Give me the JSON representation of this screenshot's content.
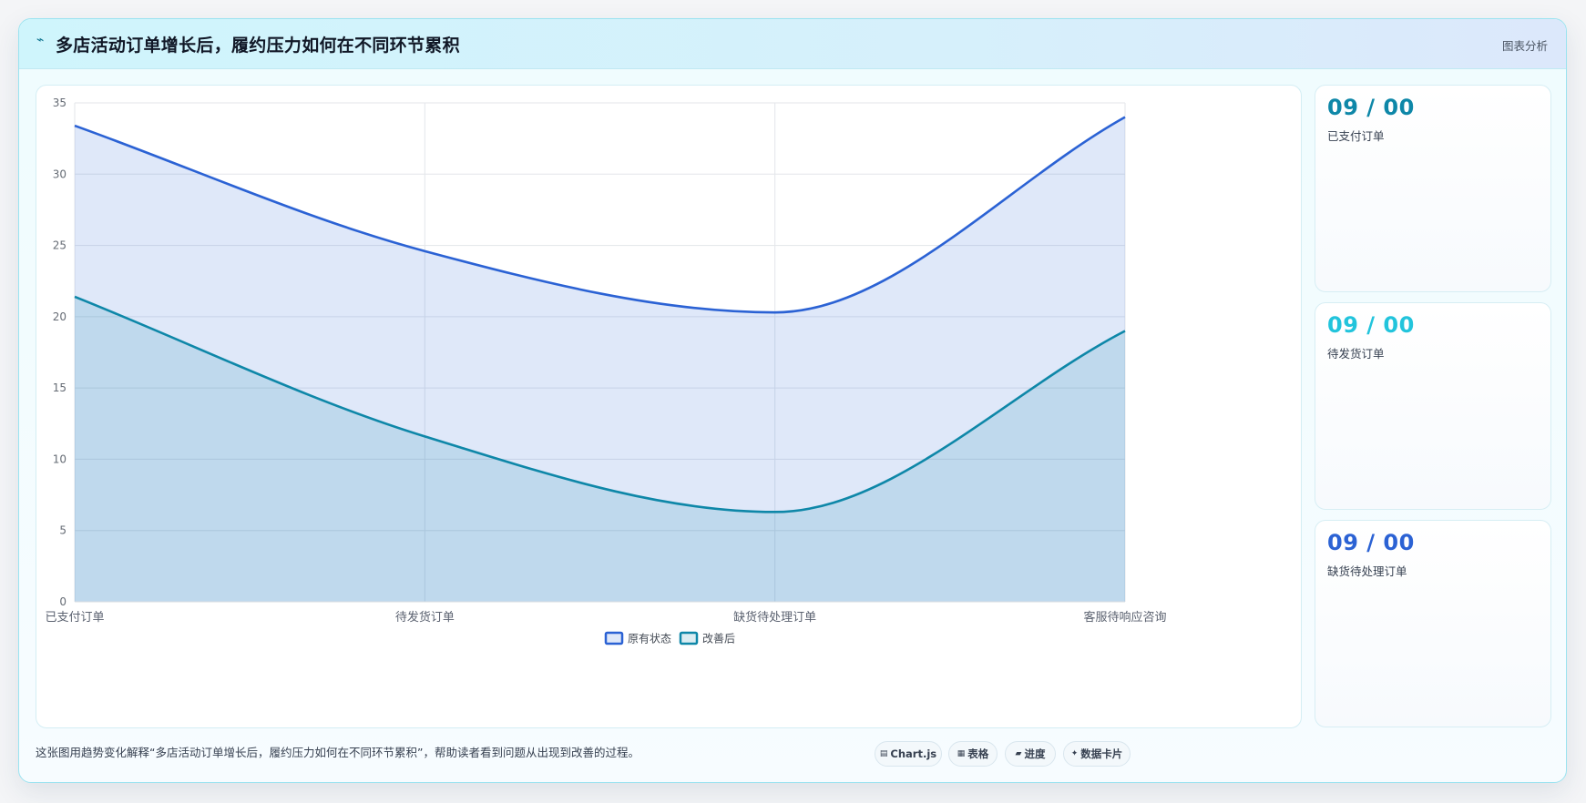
{
  "header": {
    "icon": "sparkle-icon",
    "title": "多店活动订单增长后，履约压力如何在不同环节累积",
    "action_label": "图表分析"
  },
  "stats": [
    {
      "value": "09 / 00",
      "label": "已支付订单",
      "color": "#0e87a8"
    },
    {
      "value": "09 / 00",
      "label": "待发货订单",
      "color": "#22c4dc"
    },
    {
      "value": "09 / 00",
      "label": "缺货待处理订单",
      "color": "#2b62d4"
    }
  ],
  "footer": {
    "description": "这张图用趋势变化解释“多店活动订单增长后，履约压力如何在不同环节累积”，帮助读者看到问题从出现到改善的过程。",
    "pills": [
      {
        "icon": "chart-icon",
        "label": "Chart.js"
      },
      {
        "icon": "table-icon",
        "label": "表格"
      },
      {
        "icon": "progress-icon",
        "label": "进度"
      },
      {
        "icon": "card-icon",
        "label": "数据卡片"
      }
    ]
  },
  "chart_data": {
    "type": "area",
    "categories": [
      "已支付订单",
      "待发货订单",
      "缺货待处理订单",
      "客服待响应咨询"
    ],
    "series": [
      {
        "name": "原有状态",
        "values": [
          33.4,
          24.6,
          20.3,
          34.0
        ],
        "color": "#2b62d4",
        "fill": "rgba(43,98,212,0.15)"
      },
      {
        "name": "改善后",
        "values": [
          21.4,
          11.6,
          6.3,
          19.0
        ],
        "color": "#0e87a8",
        "fill": "rgba(14,135,168,0.15)"
      }
    ],
    "ylim": [
      0,
      35
    ],
    "yticks": [
      0,
      5,
      10,
      15,
      20,
      25,
      30,
      35
    ],
    "grid": true,
    "legend_position": "bottom"
  }
}
